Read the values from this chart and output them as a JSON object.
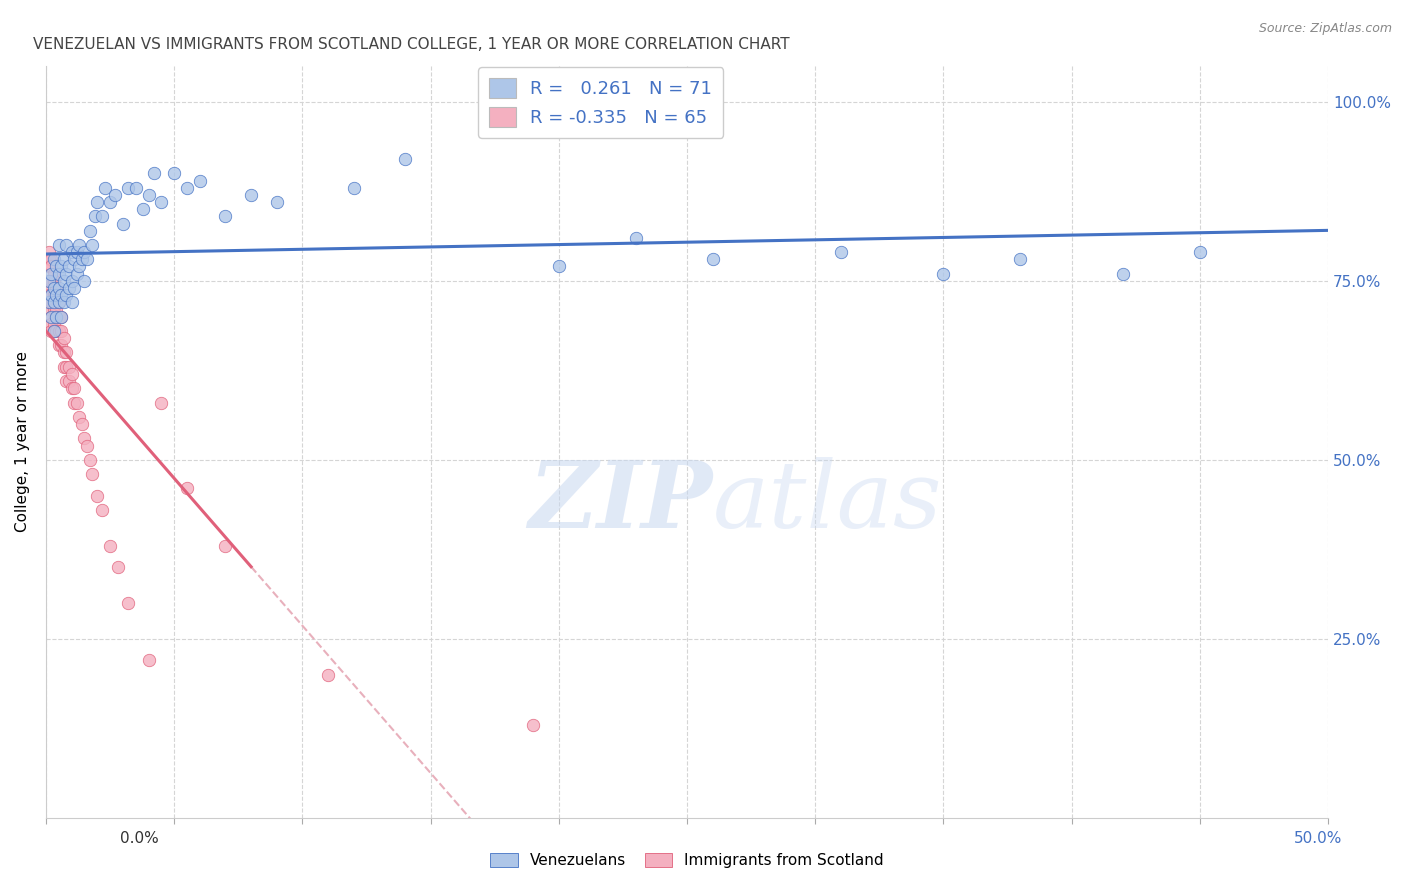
{
  "title": "VENEZUELAN VS IMMIGRANTS FROM SCOTLAND COLLEGE, 1 YEAR OR MORE CORRELATION CHART",
  "source": "Source: ZipAtlas.com",
  "ylabel": "College, 1 year or more",
  "yticks": [
    0.0,
    0.25,
    0.5,
    0.75,
    1.0
  ],
  "ytick_labels": [
    "",
    "25.0%",
    "50.0%",
    "75.0%",
    "100.0%"
  ],
  "xmin": 0.0,
  "xmax": 0.5,
  "ymin": 0.0,
  "ymax": 1.05,
  "blue_line_color": "#4472c4",
  "pink_line_color": "#e0607a",
  "dashed_line_color": "#e8b0bc",
  "dot_blue": "#aec6e8",
  "dot_pink": "#f4b0c0",
  "watermark_zip": "ZIP",
  "watermark_atlas": "atlas",
  "R_blue": 0.261,
  "N_blue": 71,
  "R_pink": -0.335,
  "N_pink": 65,
  "venezuelans_x": [
    0.001,
    0.001,
    0.002,
    0.002,
    0.002,
    0.003,
    0.003,
    0.003,
    0.003,
    0.004,
    0.004,
    0.004,
    0.005,
    0.005,
    0.005,
    0.005,
    0.006,
    0.006,
    0.006,
    0.007,
    0.007,
    0.007,
    0.008,
    0.008,
    0.008,
    0.009,
    0.009,
    0.01,
    0.01,
    0.01,
    0.011,
    0.011,
    0.012,
    0.012,
    0.013,
    0.013,
    0.014,
    0.015,
    0.015,
    0.016,
    0.017,
    0.018,
    0.019,
    0.02,
    0.022,
    0.023,
    0.025,
    0.027,
    0.03,
    0.032,
    0.035,
    0.038,
    0.04,
    0.042,
    0.045,
    0.05,
    0.055,
    0.06,
    0.07,
    0.08,
    0.09,
    0.12,
    0.14,
    0.2,
    0.23,
    0.26,
    0.31,
    0.35,
    0.38,
    0.42,
    0.45
  ],
  "venezuelans_y": [
    0.72,
    0.75,
    0.7,
    0.73,
    0.76,
    0.68,
    0.72,
    0.74,
    0.78,
    0.7,
    0.73,
    0.77,
    0.72,
    0.74,
    0.76,
    0.8,
    0.7,
    0.73,
    0.77,
    0.72,
    0.75,
    0.78,
    0.73,
    0.76,
    0.8,
    0.74,
    0.77,
    0.72,
    0.75,
    0.79,
    0.74,
    0.78,
    0.76,
    0.79,
    0.77,
    0.8,
    0.78,
    0.75,
    0.79,
    0.78,
    0.82,
    0.8,
    0.84,
    0.86,
    0.84,
    0.88,
    0.86,
    0.87,
    0.83,
    0.88,
    0.88,
    0.85,
    0.87,
    0.9,
    0.86,
    0.9,
    0.88,
    0.89,
    0.84,
    0.87,
    0.86,
    0.88,
    0.92,
    0.77,
    0.81,
    0.78,
    0.79,
    0.76,
    0.78,
    0.76,
    0.79
  ],
  "scotland_x": [
    0.001,
    0.001,
    0.001,
    0.001,
    0.001,
    0.001,
    0.001,
    0.001,
    0.002,
    0.002,
    0.002,
    0.002,
    0.002,
    0.002,
    0.002,
    0.002,
    0.003,
    0.003,
    0.003,
    0.003,
    0.003,
    0.003,
    0.003,
    0.004,
    0.004,
    0.004,
    0.004,
    0.004,
    0.005,
    0.005,
    0.005,
    0.005,
    0.006,
    0.006,
    0.006,
    0.007,
    0.007,
    0.007,
    0.008,
    0.008,
    0.008,
    0.009,
    0.009,
    0.01,
    0.01,
    0.011,
    0.011,
    0.012,
    0.013,
    0.014,
    0.015,
    0.016,
    0.017,
    0.018,
    0.02,
    0.022,
    0.025,
    0.028,
    0.032,
    0.04,
    0.045,
    0.055,
    0.07,
    0.11,
    0.19
  ],
  "scotland_y": [
    0.79,
    0.78,
    0.77,
    0.75,
    0.74,
    0.73,
    0.72,
    0.71,
    0.78,
    0.77,
    0.75,
    0.73,
    0.72,
    0.7,
    0.69,
    0.68,
    0.76,
    0.75,
    0.73,
    0.72,
    0.71,
    0.69,
    0.68,
    0.74,
    0.73,
    0.71,
    0.7,
    0.68,
    0.72,
    0.7,
    0.68,
    0.66,
    0.7,
    0.68,
    0.66,
    0.67,
    0.65,
    0.63,
    0.65,
    0.63,
    0.61,
    0.63,
    0.61,
    0.62,
    0.6,
    0.6,
    0.58,
    0.58,
    0.56,
    0.55,
    0.53,
    0.52,
    0.5,
    0.48,
    0.45,
    0.43,
    0.38,
    0.35,
    0.3,
    0.22,
    0.58,
    0.46,
    0.38,
    0.2,
    0.13
  ]
}
